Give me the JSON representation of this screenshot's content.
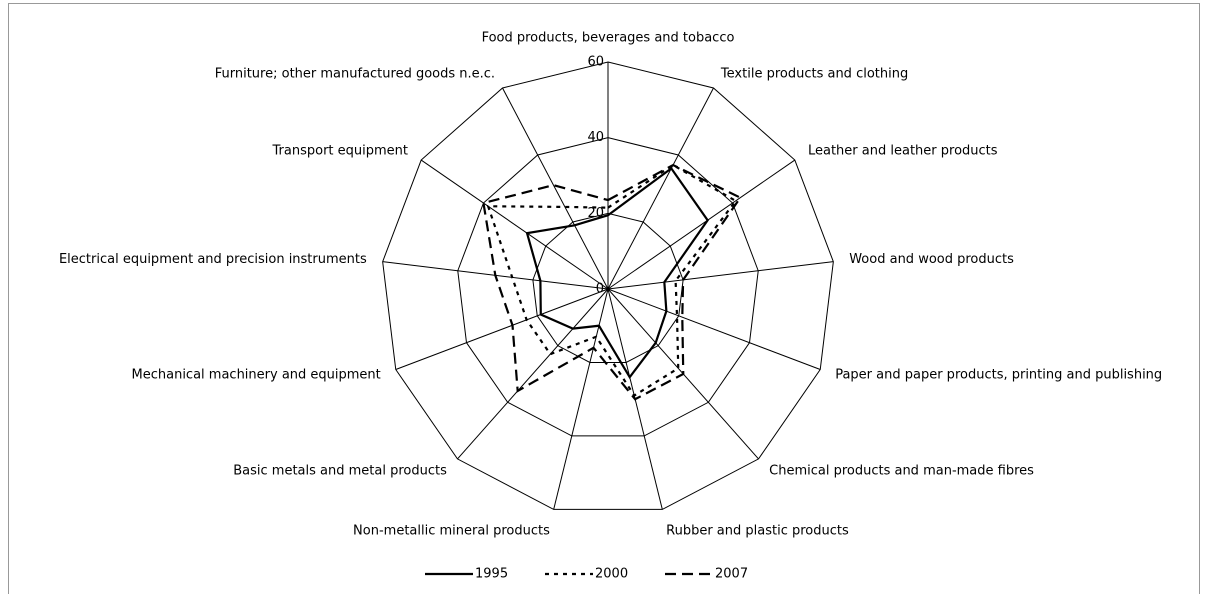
{
  "chart_data": {
    "type": "radar",
    "categories": [
      "Food products, beverages and tobacco",
      "Textile products and clothing",
      "Leather and leather products",
      "Wood and wood products",
      "Paper and paper products, printing and publishing",
      "Chemical products and man-made fibres",
      "Rubber and plastic products",
      "Non-metallic mineral products",
      "Basic metals and metal products",
      "Mechanical machinery and equipment",
      "Electrical equipment and precision instruments",
      "Transport equipment",
      "Furniture; other manufactured goods n.e.c."
    ],
    "series": [
      {
        "name": "1995",
        "color": "#000000",
        "dash": "solid",
        "values": [
          19.5,
          36,
          32,
          15,
          16.5,
          19,
          24,
          10,
          14,
          19,
          18,
          26,
          19
        ]
      },
      {
        "name": "2000",
        "color": "#000000",
        "dash": "dotted",
        "values": [
          21.5,
          37,
          41,
          18,
          19.5,
          28,
          29,
          13,
          23,
          23,
          25.5,
          38.5,
          24.5
        ]
      },
      {
        "name": "2007",
        "color": "#000000",
        "dash": "dashed",
        "values": [
          23.5,
          37,
          42.5,
          20,
          21,
          30,
          30,
          16,
          36,
          27,
          30,
          40,
          31
        ]
      }
    ],
    "ylim": [
      0,
      60
    ],
    "yticks": [
      0,
      20,
      40,
      60
    ],
    "grid": true,
    "legend": "bottom"
  }
}
